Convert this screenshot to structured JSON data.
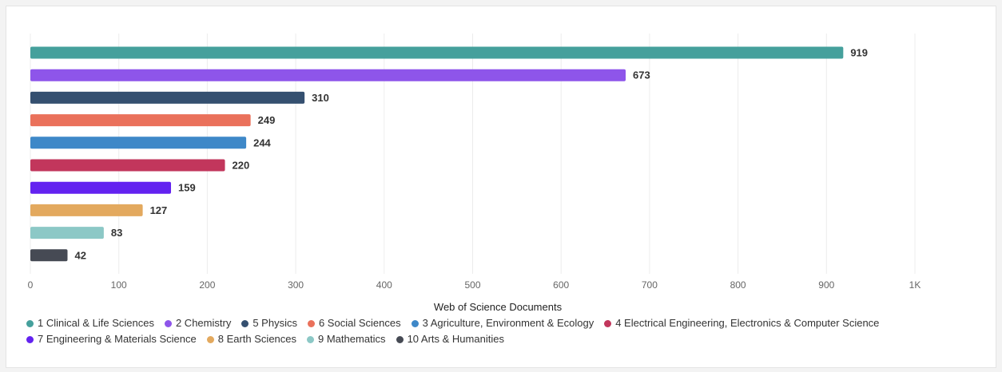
{
  "chart_data": {
    "type": "bar",
    "orientation": "horizontal",
    "xlabel": "Web of Science Documents",
    "xlim": [
      0,
      1000
    ],
    "xticks": [
      {
        "value": 0,
        "label": "0"
      },
      {
        "value": 100,
        "label": "100"
      },
      {
        "value": 200,
        "label": "200"
      },
      {
        "value": 300,
        "label": "300"
      },
      {
        "value": 400,
        "label": "400"
      },
      {
        "value": 500,
        "label": "500"
      },
      {
        "value": 600,
        "label": "600"
      },
      {
        "value": 700,
        "label": "700"
      },
      {
        "value": 800,
        "label": "800"
      },
      {
        "value": 900,
        "label": "900"
      },
      {
        "value": 1000,
        "label": "1K"
      }
    ],
    "grid": true,
    "legend_position": "bottom",
    "bars": [
      {
        "name": "1 Clinical & Life Sciences",
        "value": 919,
        "color": "#45a09c"
      },
      {
        "name": "2 Chemistry",
        "value": 673,
        "color": "#8e55ea"
      },
      {
        "name": "5 Physics",
        "value": 310,
        "color": "#355070"
      },
      {
        "name": "6 Social Sciences",
        "value": 249,
        "color": "#ea715b"
      },
      {
        "name": "3 Agriculture, Environment & Ecology",
        "value": 244,
        "color": "#3e88c8"
      },
      {
        "name": "4 Electrical Engineering, Electronics & Computer Science",
        "value": 220,
        "color": "#c2365c"
      },
      {
        "name": "7 Engineering & Materials Science",
        "value": 159,
        "color": "#6322f0"
      },
      {
        "name": "8 Earth Sciences",
        "value": 127,
        "color": "#e3a95e"
      },
      {
        "name": "9 Mathematics",
        "value": 83,
        "color": "#8cc8c6"
      },
      {
        "name": "10 Arts & Humanities",
        "value": 42,
        "color": "#464a54"
      }
    ]
  }
}
